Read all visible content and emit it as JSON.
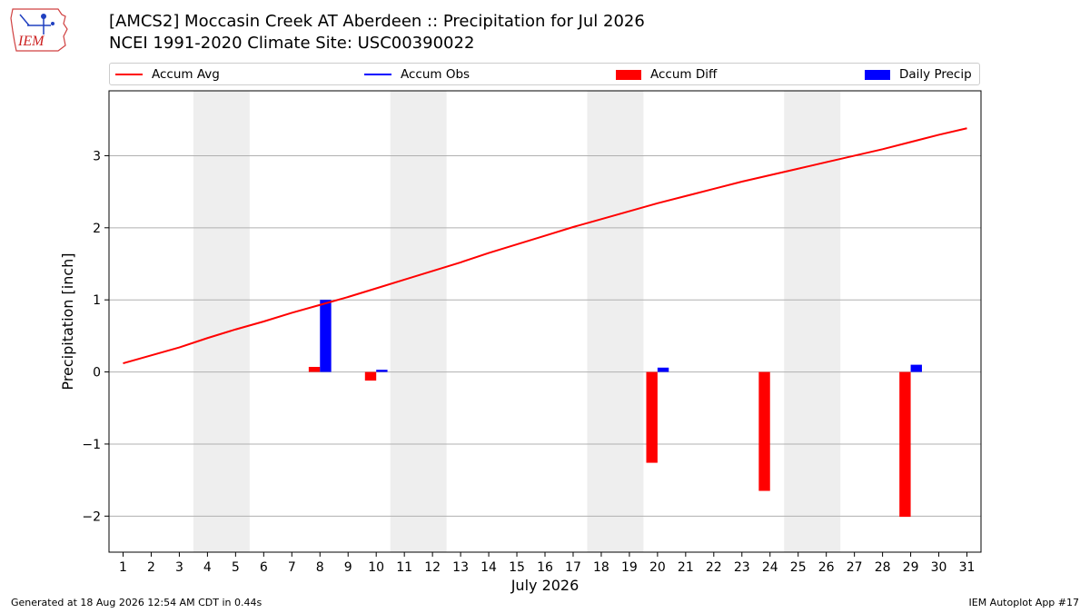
{
  "logo": {
    "text": "IEM"
  },
  "title": {
    "line1": "[AMCS2] Moccasin Creek  AT Aberdeen :: Precipitation for Jul 2026",
    "line2": "NCEI 1991-2020 Climate Site: USC00390022"
  },
  "legend": {
    "accum_avg": "Accum Avg",
    "accum_obs": "Accum Obs",
    "accum_diff": "Accum Diff",
    "daily_precip": "Daily Precip"
  },
  "colors": {
    "avg": "#ff0000",
    "obs": "#0000ff",
    "diff": "#ff0000",
    "daily": "#0000ff",
    "weekend_band": "#eeeeee",
    "grid": "#b0b0b0"
  },
  "chart_data": {
    "type": "bar",
    "xlabel": "July 2026",
    "ylabel": "Precipitation [inch]",
    "xlim": [
      0.5,
      31.5
    ],
    "ylim": [
      -2.5,
      3.9
    ],
    "yticks": [
      -2,
      -1,
      0,
      1,
      2,
      3
    ],
    "ytick_labels": [
      "−2",
      "−1",
      "0",
      "1",
      "2",
      "3"
    ],
    "x": [
      1,
      2,
      3,
      4,
      5,
      6,
      7,
      8,
      9,
      10,
      11,
      12,
      13,
      14,
      15,
      16,
      17,
      18,
      19,
      20,
      21,
      22,
      23,
      24,
      25,
      26,
      27,
      28,
      29,
      30,
      31
    ],
    "weekend_bands": [
      [
        3.5,
        5.5
      ],
      [
        10.5,
        12.5
      ],
      [
        17.5,
        19.5
      ],
      [
        24.5,
        26.5
      ]
    ],
    "grid": "y",
    "legend_position": "top",
    "series": [
      {
        "name": "Accum Avg",
        "type": "line",
        "values": [
          0.12,
          0.23,
          0.34,
          0.47,
          0.59,
          0.7,
          0.82,
          0.93,
          1.04,
          1.16,
          1.28,
          1.4,
          1.52,
          1.65,
          1.77,
          1.89,
          2.01,
          2.12,
          2.23,
          2.34,
          2.44,
          2.54,
          2.64,
          2.73,
          2.82,
          2.91,
          3.0,
          3.09,
          3.19,
          3.29,
          3.38
        ]
      },
      {
        "name": "Accum Diff",
        "type": "bar",
        "points": [
          [
            8,
            0.07
          ],
          [
            10,
            -0.12
          ],
          [
            20,
            -1.26
          ],
          [
            24,
            -1.65
          ],
          [
            29,
            -2.01
          ]
        ]
      },
      {
        "name": "Daily Precip",
        "type": "bar",
        "points": [
          [
            8,
            1.0
          ],
          [
            10,
            0.03
          ],
          [
            20,
            0.06
          ],
          [
            29,
            0.1
          ]
        ]
      }
    ]
  },
  "footer": {
    "left": "Generated at 18 Aug 2026 12:54 AM CDT in 0.44s",
    "right": "IEM Autoplot App #17"
  }
}
